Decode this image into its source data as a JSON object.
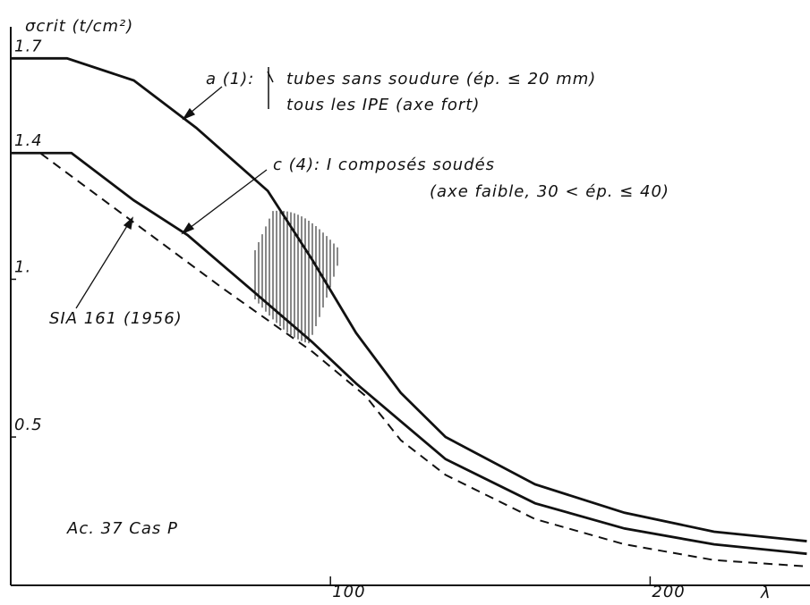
{
  "chart_data": {
    "type": "line",
    "ylabel": "σcrit (t/cm²)",
    "xlabel": "λ",
    "xlim": [
      0,
      250
    ],
    "ylim": [
      0.03,
      1.8
    ],
    "xticks": [
      100,
      200
    ],
    "yticks": [
      {
        "value": 1.7,
        "label": "1.7"
      },
      {
        "value": 1.4,
        "label": "1.4"
      },
      {
        "value": 1,
        "label": "1."
      },
      {
        "value": 0.5,
        "label": "0.5"
      }
    ],
    "series": [
      {
        "name": "a (1):",
        "color": "#111111",
        "dashed": false,
        "x": [
          0,
          17.6,
          38.5,
          58,
          80.4,
          94.4,
          108,
          122,
          136,
          164,
          192,
          220,
          249
        ],
        "values": [
          1.7,
          1.7,
          1.63,
          1.48,
          1.28,
          1.06,
          0.83,
          0.64,
          0.5,
          0.35,
          0.26,
          0.2,
          0.17
        ]
      },
      {
        "name": "c (4): I composés soudés",
        "color": "#111111",
        "dashed": false,
        "x": [
          0,
          19,
          38.5,
          55.3,
          74.9,
          94.4,
          108,
          122,
          136,
          164,
          192,
          220,
          249
        ],
        "values": [
          1.4,
          1.4,
          1.25,
          1.14,
          0.97,
          0.8,
          0.67,
          0.55,
          0.43,
          0.29,
          0.21,
          0.16,
          0.13
        ]
      },
      {
        "name": "SIA 161 (1956)",
        "color": "#111111",
        "dashed": true,
        "x": [
          0,
          9.2,
          38.5,
          66.5,
          94.4,
          111,
          122,
          136,
          164,
          192,
          220,
          249
        ],
        "values": [
          1.4,
          1.4,
          1.18,
          0.97,
          0.77,
          0.63,
          0.49,
          0.38,
          0.24,
          0.16,
          0.11,
          0.09
        ]
      }
    ],
    "annotations": [
      "tubes sans soudure (ép. ≤ 20 mm)",
      "tous les IPE (axe fort)",
      "(axe faible, 30 < ép. ≤ 40)",
      "Ac. 37    Cas  P"
    ]
  }
}
